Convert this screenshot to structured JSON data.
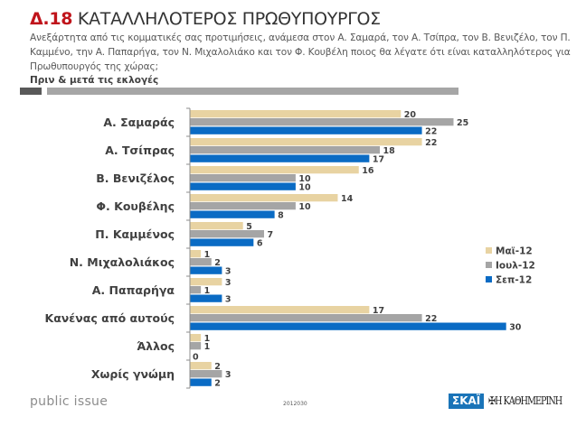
{
  "header": {
    "number": "Δ.18",
    "title": "ΚΑΤΑΛΛΗΛΟΤΕΡΟΣ ΠΡΩΘΥΠΟΥΡΓΟΣ",
    "question": "Ανεξάρτητα από τις κομματικές σας προτιμήσεις, ανάμεσα στον Α. Σαμαρά, τον Α. Τσίπρα, τον Β. Βενιζέλο, τον Π. Καμμένο, την Α. Παπαρήγα, τον Ν. Μιχαλολιάκο και τον Φ. Κουβέλη ποιος θα λέγατε ότι είναι καταλληλότερος για Πρωθυπουργός της χώρας;",
    "subtitle": "Πριν & μετά τις εκλογές"
  },
  "chart_data": {
    "type": "bar",
    "orientation": "horizontal",
    "title": "ΚΑΤΑΛΛΗΛΟΤΕΡΟΣ ΠΡΩΘΥΠΟΥΡΓΟΣ",
    "xlabel": "",
    "ylabel": "",
    "xlim": [
      0,
      30
    ],
    "grid": false,
    "legend_position": "right",
    "categories": [
      "Α. Σαμαράς",
      "Α. Τσίπρας",
      "Β. Βενιζέλος",
      "Φ. Κουβέλης",
      "Π. Καμμένος",
      "Ν. Μιχαλολιάκος",
      "Α. Παπαρήγα",
      "Κανένας από αυτούς",
      "Άλλος",
      "Χωρίς γνώμη"
    ],
    "series": [
      {
        "name": "Μαϊ-12",
        "color": "#e8d3a2",
        "values": [
          20,
          22,
          16,
          14,
          5,
          1,
          3,
          17,
          1,
          2
        ]
      },
      {
        "name": "Ιουλ-12",
        "color": "#a5a5a5",
        "values": [
          25,
          18,
          10,
          10,
          7,
          2,
          1,
          22,
          1,
          3
        ]
      },
      {
        "name": "Σεπ-12",
        "color": "#0a6bc4",
        "values": [
          22,
          17,
          10,
          8,
          6,
          3,
          3,
          30,
          0,
          2
        ]
      }
    ]
  },
  "footer": {
    "brand": "public issue",
    "code": "2012030",
    "logo_skai": "ΣΚΑΪ",
    "logo_kathimerini": "Η ΚΑΘΗΜΕΡΙΝΗ"
  }
}
